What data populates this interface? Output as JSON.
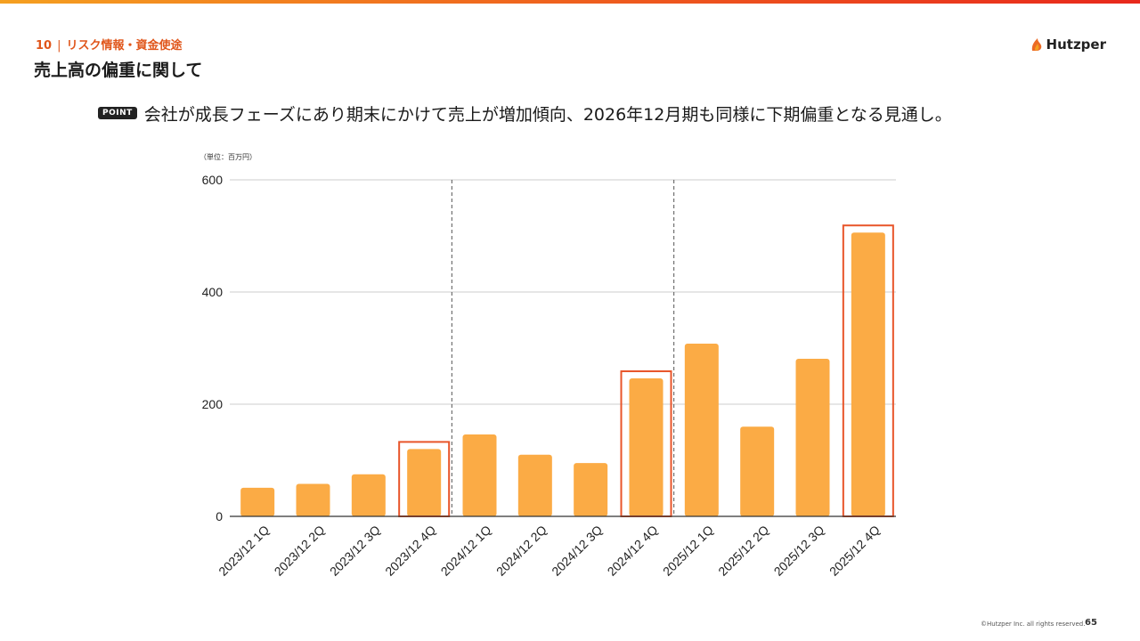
{
  "header": {
    "section_number": "10",
    "section_title": "リスク情報・資金使途",
    "page_title": "売上高の偏重に関して",
    "logo_text": "Hutzper"
  },
  "point": {
    "badge": "POINT",
    "text": "会社が成長フェーズにあり期末にかけて売上が増加傾向、2026年12月期も同様に下期偏重となる見通し。"
  },
  "colors": {
    "bar": "#fbab45",
    "highlight": "#e8552a",
    "accent": "#e0561b"
  },
  "chart_data": {
    "type": "bar",
    "unit_label": "（単位：百万円）",
    "categories": [
      "2023/12 1Q",
      "2023/12 2Q",
      "2023/12 3Q",
      "2023/12 4Q",
      "2024/12 1Q",
      "2024/12 2Q",
      "2024/12 3Q",
      "2024/12 4Q",
      "2025/12 1Q",
      "2025/12 2Q",
      "2025/12 3Q",
      "2025/12 4Q"
    ],
    "values": [
      51,
      58,
      75,
      120,
      146,
      110,
      95,
      246,
      308,
      160,
      281,
      506
    ],
    "highlighted": [
      "2023/12 4Q",
      "2024/12 4Q",
      "2025/12 4Q"
    ],
    "fiscal_year_dividers_after": [
      "2023/12 4Q",
      "2024/12 4Q"
    ],
    "yticks": [
      0,
      200,
      400,
      600
    ],
    "ylim": [
      0,
      600
    ],
    "grid": true
  },
  "footer": {
    "copyright": "©Hutzper Inc. all rights reserved.",
    "page_number": "65"
  }
}
